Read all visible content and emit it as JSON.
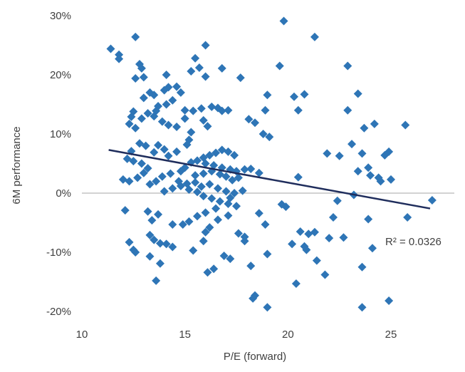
{
  "chart_data": {
    "type": "scatter",
    "xlabel": "P/E (forward)",
    "ylabel": "6M performance",
    "xlim": [
      10,
      28
    ],
    "ylim": [
      -20,
      30
    ],
    "x_ticks": [
      {
        "value": 10,
        "label": "10"
      },
      {
        "value": 15,
        "label": "15"
      },
      {
        "value": 20,
        "label": "20"
      },
      {
        "value": 25,
        "label": "25"
      }
    ],
    "y_ticks": [
      {
        "value": 30,
        "label": "30%"
      },
      {
        "value": 20,
        "label": "20%"
      },
      {
        "value": 10,
        "label": "10%"
      },
      {
        "value": 0,
        "label": "0%"
      },
      {
        "value": -10,
        "label": "-10%"
      },
      {
        "value": -20,
        "label": "-20%"
      }
    ],
    "grid": false,
    "marker": "diamond",
    "marker_color": "#2E75B6",
    "trendline": {
      "type": "linear",
      "color": "#1F2D5C",
      "start": [
        11.3,
        7.3
      ],
      "end": [
        26.9,
        -2.6
      ],
      "label": "R² = 0.0326"
    },
    "series": [
      {
        "name": "",
        "points": [
          [
            11.4,
            24.4
          ],
          [
            11.8,
            23.4
          ],
          [
            11.8,
            22.7
          ],
          [
            12.6,
            26.4
          ],
          [
            12.6,
            19.4
          ],
          [
            12.8,
            21.8
          ],
          [
            12.9,
            21.1
          ],
          [
            13.0,
            19.6
          ],
          [
            13.3,
            17.0
          ],
          [
            13.5,
            16.6
          ],
          [
            13.0,
            16.1
          ],
          [
            12.5,
            13.8
          ],
          [
            12.4,
            12.9
          ],
          [
            12.3,
            11.7
          ],
          [
            12.6,
            11.0
          ],
          [
            12.9,
            12.6
          ],
          [
            13.2,
            13.5
          ],
          [
            13.6,
            13.9
          ],
          [
            14.1,
            15.0
          ],
          [
            14.4,
            15.7
          ],
          [
            14.0,
            17.4
          ],
          [
            14.2,
            17.9
          ],
          [
            14.6,
            18.0
          ],
          [
            14.8,
            17.0
          ],
          [
            14.1,
            20.0
          ],
          [
            15.3,
            20.6
          ],
          [
            15.5,
            22.8
          ],
          [
            15.7,
            21.2
          ],
          [
            16.0,
            19.7
          ],
          [
            16.0,
            25.0
          ],
          [
            16.8,
            21.1
          ],
          [
            17.7,
            19.5
          ],
          [
            13.7,
            14.7
          ],
          [
            13.5,
            13.0
          ],
          [
            13.9,
            12.1
          ],
          [
            14.2,
            11.5
          ],
          [
            14.6,
            11.2
          ],
          [
            15.0,
            12.6
          ],
          [
            15.0,
            14.0
          ],
          [
            15.4,
            13.9
          ],
          [
            15.8,
            14.3
          ],
          [
            16.3,
            14.6
          ],
          [
            16.6,
            14.4
          ],
          [
            16.8,
            13.9
          ],
          [
            17.1,
            14.0
          ],
          [
            15.9,
            12.3
          ],
          [
            16.1,
            11.3
          ],
          [
            15.3,
            10.3
          ],
          [
            15.2,
            9.0
          ],
          [
            15.1,
            8.2
          ],
          [
            14.6,
            7.0
          ],
          [
            14.2,
            6.3
          ],
          [
            14.0,
            7.4
          ],
          [
            13.7,
            8.1
          ],
          [
            13.5,
            6.9
          ],
          [
            13.1,
            8.0
          ],
          [
            12.8,
            8.4
          ],
          [
            12.4,
            7.1
          ],
          [
            12.2,
            5.8
          ],
          [
            12.5,
            5.4
          ],
          [
            12.9,
            5.0
          ],
          [
            13.2,
            4.2
          ],
          [
            13.0,
            3.4
          ],
          [
            12.7,
            2.6
          ],
          [
            12.3,
            2.0
          ],
          [
            12.0,
            2.3
          ],
          [
            13.3,
            1.5
          ],
          [
            13.6,
            2.0
          ],
          [
            13.9,
            2.8
          ],
          [
            14.3,
            3.3
          ],
          [
            14.8,
            3.7
          ],
          [
            15.0,
            4.3
          ],
          [
            15.3,
            5.2
          ],
          [
            15.6,
            5.5
          ],
          [
            15.9,
            6.0
          ],
          [
            16.2,
            6.4
          ],
          [
            16.5,
            6.8
          ],
          [
            16.8,
            7.3
          ],
          [
            17.1,
            7.0
          ],
          [
            17.4,
            6.4
          ],
          [
            16.0,
            5.0
          ],
          [
            16.4,
            4.7
          ],
          [
            16.8,
            4.3
          ],
          [
            17.2,
            4.0
          ],
          [
            17.5,
            3.7
          ],
          [
            17.9,
            4.0
          ],
          [
            15.5,
            3.0
          ],
          [
            15.9,
            3.3
          ],
          [
            16.3,
            3.7
          ],
          [
            16.7,
            3.2
          ],
          [
            17.0,
            2.8
          ],
          [
            17.3,
            2.2
          ],
          [
            17.6,
            2.6
          ],
          [
            14.7,
            2.0
          ],
          [
            15.1,
            1.6
          ],
          [
            15.5,
            1.8
          ],
          [
            15.8,
            1.1
          ],
          [
            16.2,
            1.5
          ],
          [
            16.6,
            0.8
          ],
          [
            17.0,
            0.3
          ],
          [
            17.4,
            0.0
          ],
          [
            17.8,
            0.4
          ],
          [
            14.0,
            0.3
          ],
          [
            14.4,
            0.8
          ],
          [
            14.8,
            1.2
          ],
          [
            15.2,
            0.6
          ],
          [
            15.6,
            0.2
          ],
          [
            15.9,
            -0.5
          ],
          [
            16.3,
            -0.9
          ],
          [
            16.7,
            -1.4
          ],
          [
            17.1,
            -1.8
          ],
          [
            17.5,
            -2.2
          ],
          [
            17.2,
            -0.8
          ],
          [
            16.5,
            -2.6
          ],
          [
            16.0,
            -3.3
          ],
          [
            15.6,
            -3.9
          ],
          [
            15.2,
            -4.8
          ],
          [
            14.9,
            -5.3
          ],
          [
            16.2,
            -5.8
          ],
          [
            16.6,
            -4.5
          ],
          [
            17.1,
            -3.8
          ],
          [
            17.6,
            -6.8
          ],
          [
            17.9,
            -7.4
          ],
          [
            17.9,
            -8.1
          ],
          [
            16.0,
            -6.6
          ],
          [
            15.4,
            -9.7
          ],
          [
            16.1,
            -13.4
          ],
          [
            16.4,
            -12.8
          ],
          [
            16.9,
            -10.6
          ],
          [
            17.2,
            -11.1
          ],
          [
            15.9,
            -8.1
          ],
          [
            14.4,
            -9.1
          ],
          [
            13.8,
            -8.5
          ],
          [
            13.5,
            -7.9
          ],
          [
            13.3,
            -7.1
          ],
          [
            13.7,
            -3.6
          ],
          [
            13.4,
            -4.6
          ],
          [
            13.2,
            -3.1
          ],
          [
            12.1,
            -2.9
          ],
          [
            12.3,
            -8.3
          ],
          [
            12.6,
            -10.0
          ],
          [
            12.5,
            -9.6
          ],
          [
            13.3,
            -10.7
          ],
          [
            13.8,
            -11.9
          ],
          [
            13.6,
            -14.8
          ],
          [
            14.1,
            -8.6
          ],
          [
            14.4,
            -5.3
          ],
          [
            18.1,
            12.5
          ],
          [
            18.4,
            11.9
          ],
          [
            18.8,
            10.0
          ],
          [
            19.1,
            9.5
          ],
          [
            18.9,
            14.0
          ],
          [
            19.0,
            16.6
          ],
          [
            19.6,
            21.5
          ],
          [
            19.8,
            29.1
          ],
          [
            20.3,
            16.3
          ],
          [
            20.5,
            14.0
          ],
          [
            20.8,
            16.7
          ],
          [
            21.3,
            26.4
          ],
          [
            18.2,
            4.1
          ],
          [
            18.6,
            3.4
          ],
          [
            18.6,
            -3.4
          ],
          [
            18.9,
            -5.3
          ],
          [
            18.2,
            -12.3
          ],
          [
            18.4,
            -17.3
          ],
          [
            18.3,
            -17.8
          ],
          [
            19.0,
            -10.3
          ],
          [
            19.0,
            -19.3
          ],
          [
            19.7,
            -1.9
          ],
          [
            19.9,
            -2.3
          ],
          [
            20.2,
            -8.6
          ],
          [
            20.5,
            2.7
          ],
          [
            20.6,
            -6.5
          ],
          [
            20.8,
            -9.0
          ],
          [
            20.9,
            -9.6
          ],
          [
            21.0,
            -6.9
          ],
          [
            21.3,
            -6.6
          ],
          [
            21.4,
            -11.4
          ],
          [
            20.4,
            -15.3
          ],
          [
            21.8,
            -13.8
          ],
          [
            22.0,
            -7.6
          ],
          [
            21.9,
            6.7
          ],
          [
            22.2,
            -4.1
          ],
          [
            22.4,
            -1.3
          ],
          [
            22.5,
            6.3
          ],
          [
            22.7,
            -7.5
          ],
          [
            22.9,
            14.0
          ],
          [
            23.1,
            8.3
          ],
          [
            23.4,
            3.7
          ],
          [
            22.9,
            21.5
          ],
          [
            23.4,
            16.8
          ],
          [
            23.6,
            6.7
          ],
          [
            23.7,
            11.0
          ],
          [
            23.9,
            4.3
          ],
          [
            24.0,
            3.0
          ],
          [
            24.1,
            -9.3
          ],
          [
            23.2,
            -0.3
          ],
          [
            23.6,
            -12.5
          ],
          [
            23.6,
            -19.3
          ],
          [
            23.9,
            -4.4
          ],
          [
            24.2,
            11.7
          ],
          [
            24.4,
            2.6
          ],
          [
            24.5,
            2.0
          ],
          [
            24.7,
            6.4
          ],
          [
            24.9,
            7.0
          ],
          [
            25.0,
            2.3
          ],
          [
            24.9,
            -18.2
          ],
          [
            25.7,
            11.5
          ],
          [
            25.8,
            -4.1
          ],
          [
            27.0,
            -1.2
          ]
        ]
      }
    ]
  }
}
